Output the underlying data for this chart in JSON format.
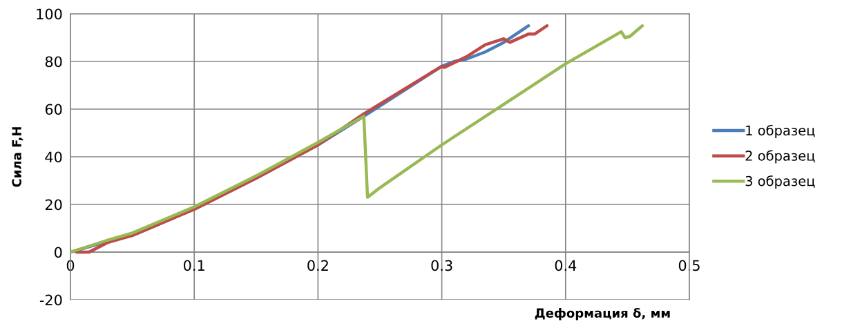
{
  "chart_data": {
    "type": "line",
    "xlabel": "Деформация δ, мм",
    "ylabel": "Сила F,Н",
    "xlim": [
      0,
      0.5
    ],
    "xticks": [
      0,
      0.1,
      0.2,
      0.3,
      0.4,
      0.5
    ],
    "ylim": [
      -20,
      100
    ],
    "yticks": [
      -20,
      0,
      20,
      40,
      60,
      80,
      100
    ],
    "grid": true,
    "legend": "right",
    "marker": "none",
    "line_style": "solid",
    "series": [
      {
        "name": "1 образец",
        "color": "#4a7ebb",
        "x": [
          0,
          0.02,
          0.05,
          0.1,
          0.15,
          0.2,
          0.237,
          0.3,
          0.31,
          0.32,
          0.335,
          0.35,
          0.37
        ],
        "values": [
          0,
          3,
          7,
          18,
          31,
          45,
          57,
          78,
          80,
          81,
          84,
          88,
          95
        ]
      },
      {
        "name": "2 образец",
        "color": "#be4b48",
        "x": [
          0.005,
          0.015,
          0.03,
          0.05,
          0.1,
          0.15,
          0.2,
          0.237,
          0.3,
          0.302,
          0.32,
          0.335,
          0.35,
          0.355,
          0.37,
          0.375,
          0.385
        ],
        "values": [
          0,
          0,
          4,
          7,
          18,
          31,
          45,
          58,
          78,
          77.5,
          82,
          87,
          89.5,
          88,
          91.5,
          91.5,
          95
        ]
      },
      {
        "name": "3 образец",
        "color": "#98b954",
        "x": [
          0,
          0.03,
          0.05,
          0.1,
          0.15,
          0.2,
          0.237,
          0.24,
          0.25,
          0.3,
          0.35,
          0.4,
          0.445,
          0.448,
          0.452,
          0.462
        ],
        "values": [
          0,
          5,
          8,
          19,
          32,
          46,
          57,
          23,
          27,
          45,
          62,
          79,
          92.5,
          90,
          90.5,
          95
        ]
      }
    ]
  }
}
